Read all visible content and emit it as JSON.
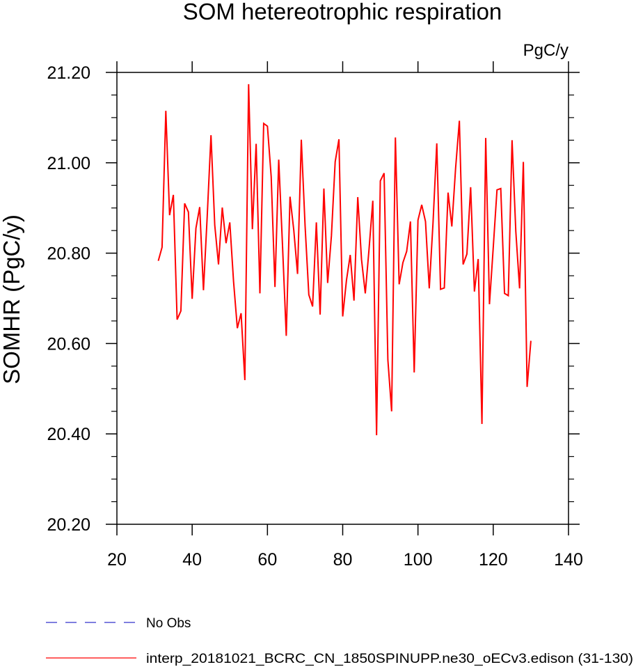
{
  "chart_data": {
    "type": "line",
    "title": "SOM hetereotrophic respiration",
    "units": "PgC/y",
    "xlabel": "",
    "ylabel": "SOMHR  (PgC/y)",
    "xlim": [
      20,
      140
    ],
    "ylim": [
      20.2,
      21.2
    ],
    "xticks": [
      20,
      40,
      60,
      80,
      100,
      120,
      140
    ],
    "xtick_labels": [
      "20",
      "40",
      "60",
      "80",
      "100",
      "120",
      "140"
    ],
    "yticks": [
      20.2,
      20.4,
      20.6,
      20.8,
      21.0,
      21.2
    ],
    "ytick_labels": [
      "20.20",
      "20.40",
      "20.60",
      "20.80",
      "21.00",
      "21.20"
    ],
    "grid": false,
    "legend_position": "bottom-left",
    "series": [
      {
        "name": "interp_20181021_BCRC_CN_1850SPINUPP.ne30_oECv3.edison (31-130)",
        "color": "#ff0000",
        "dash": "solid",
        "x": [
          31,
          32,
          33,
          34,
          35,
          36,
          37,
          38,
          39,
          40,
          41,
          42,
          43,
          44,
          45,
          46,
          47,
          48,
          49,
          50,
          51,
          52,
          53,
          54,
          55,
          56,
          57,
          58,
          59,
          60,
          61,
          62,
          63,
          64,
          65,
          66,
          67,
          68,
          69,
          70,
          71,
          72,
          73,
          74,
          75,
          76,
          77,
          78,
          79,
          80,
          81,
          82,
          83,
          84,
          85,
          86,
          87,
          88,
          89,
          90,
          91,
          92,
          93,
          94,
          95,
          96,
          97,
          98,
          99,
          100,
          101,
          102,
          103,
          104,
          105,
          106,
          107,
          108,
          109,
          110,
          111,
          112,
          113,
          114,
          115,
          116,
          117,
          118,
          119,
          120,
          121,
          122,
          123,
          124,
          125,
          126,
          127,
          128,
          129,
          130
        ],
        "values": [
          20.783,
          20.813,
          21.115,
          20.884,
          20.929,
          20.653,
          20.672,
          20.91,
          20.891,
          20.699,
          20.855,
          20.902,
          20.718,
          20.882,
          21.061,
          20.862,
          20.775,
          20.901,
          20.822,
          20.868,
          20.737,
          20.634,
          20.667,
          20.519,
          21.174,
          20.853,
          21.042,
          20.711,
          21.087,
          21.081,
          20.969,
          20.725,
          21.007,
          20.818,
          20.617,
          20.925,
          20.851,
          20.754,
          21.051,
          20.861,
          20.708,
          20.682,
          20.868,
          20.664,
          20.943,
          20.734,
          20.838,
          21.002,
          21.052,
          20.66,
          20.74,
          20.796,
          20.695,
          20.924,
          20.786,
          20.711,
          20.809,
          20.916,
          20.397,
          20.96,
          20.977,
          20.564,
          20.45,
          21.056,
          20.731,
          20.779,
          20.804,
          20.87,
          20.536,
          20.873,
          20.907,
          20.87,
          20.722,
          20.867,
          21.043,
          20.72,
          20.723,
          20.934,
          20.859,
          20.988,
          21.093,
          20.775,
          20.798,
          20.946,
          20.715,
          20.787,
          20.422,
          21.055,
          20.687,
          20.812,
          20.94,
          20.943,
          20.711,
          20.706,
          21.05,
          20.848,
          20.722,
          21.002,
          20.504,
          20.606
        ]
      },
      {
        "name": "No Obs",
        "color": "#3333cc",
        "dash": "dashed",
        "x": [],
        "values": []
      }
    ]
  }
}
